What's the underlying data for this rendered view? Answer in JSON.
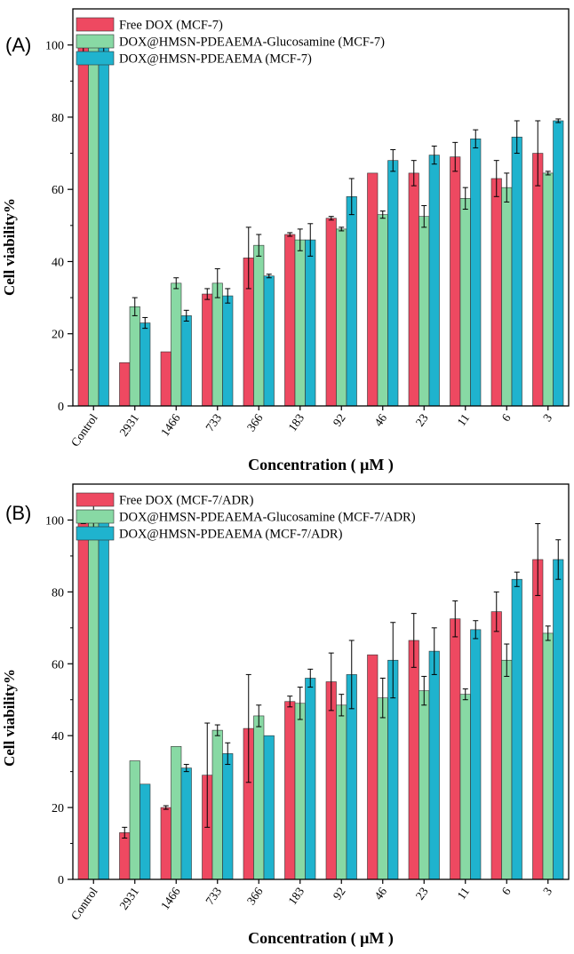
{
  "colors": {
    "series": [
      "#ee4961",
      "#88d9a4",
      "#1fb3ce"
    ],
    "axis": "#000000"
  },
  "chart_data": [
    {
      "type": "bar",
      "panel_label": "(A)",
      "title": "",
      "xlabel": "Concentration ( μM )",
      "ylabel": "Cell viability%",
      "ylim": [
        0,
        110
      ],
      "yticks": [
        0,
        20,
        40,
        60,
        80,
        100
      ],
      "categories": [
        "Control",
        "2931",
        "1466",
        "733",
        "366",
        "183",
        "92",
        "46",
        "23",
        "11",
        "6",
        "3"
      ],
      "legend_position": "top-left",
      "series": [
        {
          "name": "Free DOX (MCF-7)",
          "values": [
            99.5,
            12,
            15,
            31,
            41,
            47.5,
            52,
            64.5,
            64.5,
            69,
            63,
            70
          ],
          "errors": [
            3,
            0,
            0,
            1.5,
            8.5,
            0.5,
            0.5,
            0,
            3.5,
            4,
            5,
            9
          ]
        },
        {
          "name": "DOX@HMSN-PDEAEMA-Glucosamine (MCF-7)",
          "values": [
            100.5,
            27.5,
            34,
            34,
            44.5,
            46,
            49,
            53,
            52.5,
            57.5,
            60.5,
            64.5
          ],
          "errors": [
            0.5,
            2.5,
            1.5,
            4,
            3,
            3,
            0.5,
            1,
            3,
            3,
            4,
            0.5
          ]
        },
        {
          "name": "DOX@HMSN-PDEAEMA (MCF-7)",
          "values": [
            100,
            23,
            25,
            30.5,
            36,
            46,
            58,
            68,
            69.5,
            74,
            74.5,
            79
          ],
          "errors": [
            2,
            1.5,
            1.5,
            2,
            0.5,
            4.5,
            5,
            3,
            2.5,
            2.5,
            4.5,
            0.5
          ]
        }
      ]
    },
    {
      "type": "bar",
      "panel_label": "(B)",
      "title": "",
      "xlabel": "Concentration ( μM )",
      "ylabel": "Cell viability%",
      "ylim": [
        0,
        110
      ],
      "yticks": [
        0,
        20,
        40,
        60,
        80,
        100
      ],
      "categories": [
        "Control",
        "2931",
        "1466",
        "733",
        "366",
        "183",
        "92",
        "46",
        "23",
        "11",
        "6",
        "3"
      ],
      "legend_position": "top-left",
      "series": [
        {
          "name": "Free DOX (MCF-7/ADR)",
          "values": [
            99.5,
            13,
            20,
            29,
            42,
            49.5,
            55,
            62.5,
            66.5,
            72.5,
            74.5,
            89
          ],
          "errors": [
            0.5,
            1.5,
            0.5,
            14.5,
            15,
            1.5,
            8,
            0,
            7.5,
            5,
            5.5,
            10
          ]
        },
        {
          "name": "DOX@HMSN-PDEAEMA-Glucosamine (MCF-7/ADR)",
          "values": [
            100,
            33,
            37,
            41.5,
            45.5,
            49,
            48.5,
            50.5,
            52.5,
            51.5,
            61,
            68.5
          ],
          "errors": [
            5,
            0,
            0,
            1.5,
            3,
            4.5,
            3,
            5.5,
            4,
            1.5,
            4.5,
            2
          ]
        },
        {
          "name": "DOX@HMSN-PDEAEMA (MCF-7/ADR)",
          "values": [
            100,
            26.5,
            31,
            35,
            40,
            56,
            57,
            61,
            63.5,
            69.5,
            83.5,
            89
          ],
          "errors": [
            0.5,
            0,
            1,
            3,
            0,
            2.5,
            9.5,
            10.5,
            6.5,
            2.5,
            2,
            5.5
          ]
        }
      ]
    }
  ]
}
